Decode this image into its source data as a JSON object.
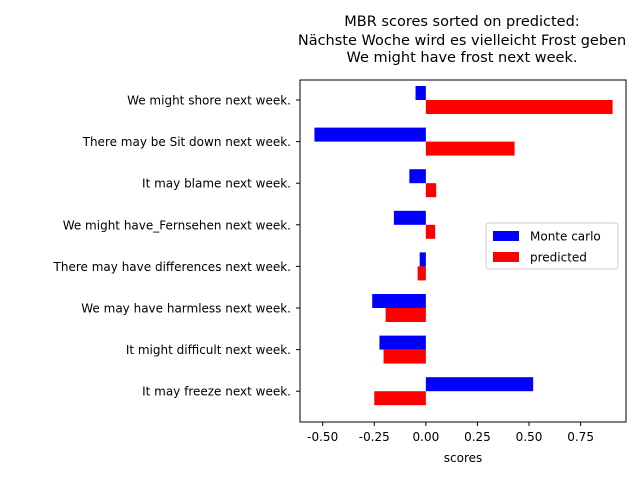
{
  "chart_data": {
    "type": "bar",
    "orientation": "horizontal",
    "title_lines": [
      "MBR scores sorted on predicted:",
      "Nächste Woche wird es vielleicht Frost geben",
      "We might have frost next week."
    ],
    "xlabel": "scores",
    "categories": [
      "We might shore next week.",
      "There may be Sit down next week.",
      "It may blame next week.",
      "We might have_Fernsehen next week.",
      "There may have differences next week.",
      "We may have harmless next week.",
      "It might difficult next week.",
      "It may freeze next week."
    ],
    "series": [
      {
        "name": "Monte carlo",
        "color": "#0000ff",
        "values": [
          -0.05,
          -0.54,
          -0.08,
          -0.155,
          -0.03,
          -0.26,
          -0.225,
          0.52
        ]
      },
      {
        "name": "predicted",
        "color": "#ff0000",
        "values": [
          0.905,
          0.43,
          0.05,
          0.045,
          -0.04,
          -0.195,
          -0.205,
          -0.25
        ]
      }
    ],
    "xticks": [
      "-0.50",
      "-0.25",
      "0.00",
      "0.25",
      "0.50",
      "0.75"
    ],
    "xtick_values": [
      -0.5,
      -0.25,
      0,
      0.25,
      0.5,
      0.75
    ],
    "xlim": [
      -0.61,
      0.97
    ],
    "grid": false,
    "legend_position": "center-right"
  }
}
